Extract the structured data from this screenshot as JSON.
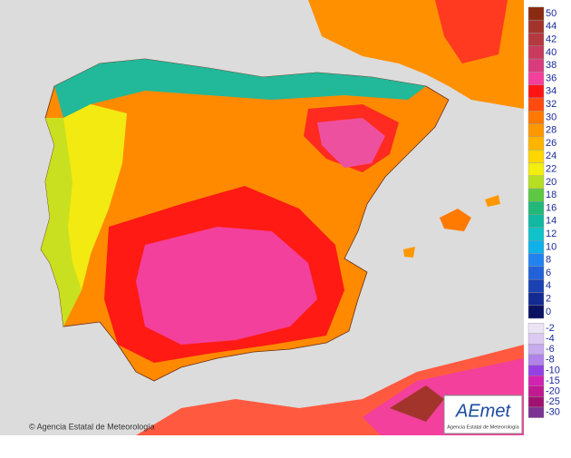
{
  "map": {
    "copyright": "© Agencia Estatal de Meteorología",
    "logo": {
      "name": "AEmet",
      "subtitle": "Agencia Estatal de Meteorología"
    },
    "legend": {
      "upper": [
        {
          "label": 50,
          "color": "#8b2a12"
        },
        {
          "label": 44,
          "color": "#a3342c"
        },
        {
          "label": 42,
          "color": "#b43a40"
        },
        {
          "label": 40,
          "color": "#c63b5e"
        },
        {
          "label": 38,
          "color": "#d83c7c"
        },
        {
          "label": 36,
          "color": "#f2409c"
        },
        {
          "label": 34,
          "color": "#ff1414"
        },
        {
          "label": 32,
          "color": "#ff4a10"
        },
        {
          "label": 30,
          "color": "#ff7800"
        },
        {
          "label": 28,
          "color": "#ff9800"
        },
        {
          "label": 26,
          "color": "#ffb400"
        },
        {
          "label": 24,
          "color": "#ffd600"
        },
        {
          "label": 22,
          "color": "#f2ee10"
        },
        {
          "label": 20,
          "color": "#b6de22"
        },
        {
          "label": 18,
          "color": "#5ec844"
        },
        {
          "label": 16,
          "color": "#22b87a"
        },
        {
          "label": 14,
          "color": "#12b8a2"
        },
        {
          "label": 12,
          "color": "#10c2ca"
        },
        {
          "label": 10,
          "color": "#10b0e8"
        },
        {
          "label": 8,
          "color": "#2282f0"
        },
        {
          "label": 6,
          "color": "#2262d8"
        },
        {
          "label": 4,
          "color": "#1a42b2"
        },
        {
          "label": 2,
          "color": "#122a92"
        },
        {
          "label": 0,
          "color": "#0c1262"
        }
      ],
      "lower": [
        {
          "label": -2,
          "color": "#ece4f4"
        },
        {
          "label": -4,
          "color": "#dccaf2"
        },
        {
          "label": -6,
          "color": "#c8aaee"
        },
        {
          "label": -8,
          "color": "#b082ea"
        },
        {
          "label": -10,
          "color": "#9242e2"
        },
        {
          "label": -15,
          "color": "#d222b2"
        },
        {
          "label": -20,
          "color": "#c01a92"
        },
        {
          "label": -25,
          "color": "#a01272"
        },
        {
          "label": -30,
          "color": "#7c3292"
        }
      ]
    }
  }
}
